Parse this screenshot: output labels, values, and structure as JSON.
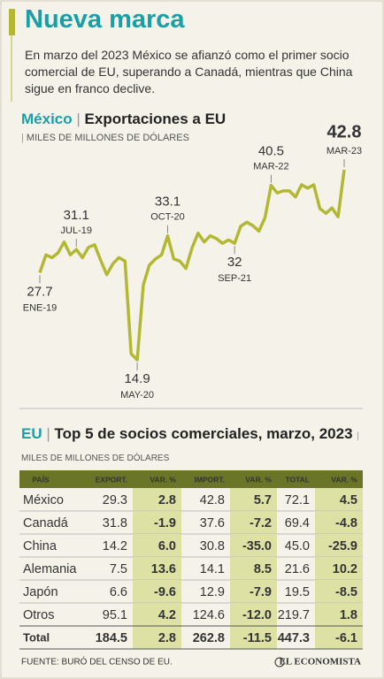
{
  "header": {
    "title": "Nueva marca",
    "subtitle": "En marzo del 2023 México se afianzó como el primer socio comercial de EU, superando a Canadá, mientras que China sigue en franco declive."
  },
  "chart_data": {
    "type": "line",
    "title_country": "México",
    "title": "Exportaciones a EU",
    "unit": "MILES DE MILLONES DE DÓLARES",
    "color": "#b2b834",
    "categories": [
      "ENE-19",
      null,
      null,
      null,
      null,
      null,
      "JUL-19",
      null,
      null,
      null,
      null,
      null,
      null,
      null,
      null,
      null,
      "MAY-20",
      null,
      null,
      null,
      null,
      "OCT-20",
      null,
      null,
      null,
      null,
      null,
      null,
      null,
      null,
      null,
      null,
      "SEP-21",
      null,
      null,
      null,
      null,
      null,
      "MAR-22",
      null,
      null,
      null,
      null,
      null,
      null,
      null,
      null,
      null,
      null,
      null,
      "MAR-23"
    ],
    "values": [
      27.7,
      30.3,
      29.9,
      30.6,
      32.2,
      30.3,
      31.1,
      29.9,
      31.4,
      31.8,
      29.5,
      27.4,
      29.0,
      29.9,
      29.4,
      15.8,
      14.9,
      25.9,
      28.8,
      29.7,
      30.3,
      33.1,
      29.7,
      29.4,
      28.3,
      31.3,
      33.5,
      32.2,
      33.1,
      32.7,
      32.0,
      32.5,
      32.0,
      34.5,
      35.1,
      34.6,
      33.8,
      35.8,
      40.5,
      39.4,
      39.7,
      39.7,
      38.8,
      40.6,
      40.1,
      40.6,
      37.1,
      36.4,
      37.2,
      35.9,
      42.8
    ]
  },
  "table": {
    "title_country": "EU",
    "title": "Top 5 de socios comerciales, marzo, 2023",
    "unit": "MILES DE MILLONES DE DÓLARES",
    "columns": [
      "PAÍS",
      "EXPORT.",
      "VAR. %",
      "IMPORT.",
      "VAR. %",
      "TOTAL",
      "VAR. %"
    ],
    "rows": [
      [
        "México",
        "29.3",
        "2.8",
        "42.8",
        "5.7",
        "72.1",
        "4.5"
      ],
      [
        "Canadá",
        "31.8",
        "-1.9",
        "37.6",
        "-7.2",
        "69.4",
        "-4.8"
      ],
      [
        "China",
        "14.2",
        "6.0",
        "30.8",
        "-35.0",
        "45.0",
        "-25.9"
      ],
      [
        "Alemania",
        "7.5",
        "13.6",
        "14.1",
        "8.5",
        "21.6",
        "10.2"
      ],
      [
        "Japón",
        "6.6",
        "-9.6",
        "12.9",
        "-7.9",
        "19.5",
        "-8.5"
      ],
      [
        "Otros",
        "95.1",
        "4.2",
        "124.6",
        "-12.0",
        "219.7",
        "1.8"
      ],
      [
        "Total",
        "184.5",
        "2.8",
        "262.8",
        "-11.5",
        "447.3",
        "-6.1"
      ]
    ]
  },
  "footer": {
    "source": "FUENTE: BURÓ DEL CENSO DE EU.",
    "logo": "EL ECONOMISTA"
  }
}
